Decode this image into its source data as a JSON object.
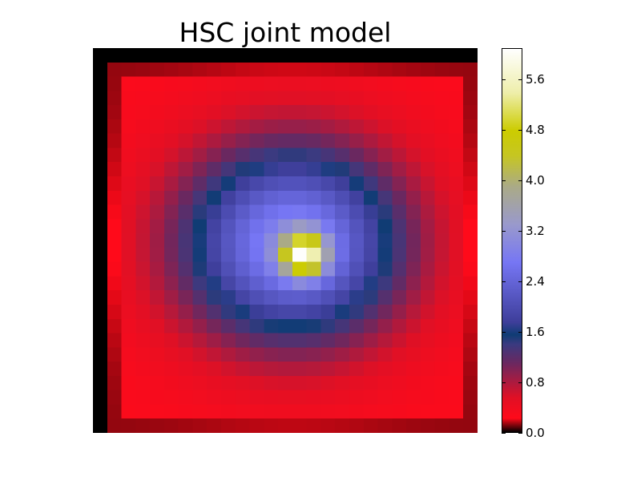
{
  "chart_data": {
    "type": "heatmap",
    "title": "HSC joint model",
    "colormap": "gist_stern",
    "colorbar": {
      "range": [
        0.0,
        6.1
      ],
      "ticks": [
        "0.0",
        "0.8",
        "1.6",
        "2.4",
        "3.2",
        "4.0",
        "4.8",
        "5.6"
      ],
      "gradient": [
        {
          "v": 0.0,
          "color": "#000000"
        },
        {
          "v": 0.22,
          "color": "#ff0a1a"
        },
        {
          "v": 0.55,
          "color": "#e01025"
        },
        {
          "v": 1.1,
          "color": "#6a2860"
        },
        {
          "v": 1.4,
          "color": "#3a3a80"
        },
        {
          "v": 1.55,
          "color": "#0f3c74"
        },
        {
          "v": 1.75,
          "color": "#3e3e9a"
        },
        {
          "v": 2.7,
          "color": "#7676f4"
        },
        {
          "v": 3.3,
          "color": "#9999cc"
        },
        {
          "v": 3.9,
          "color": "#aaaa88"
        },
        {
          "v": 4.4,
          "color": "#c6c622"
        },
        {
          "v": 4.8,
          "color": "#cccc00"
        },
        {
          "v": 5.4,
          "color": "#eeeeaa"
        },
        {
          "v": 6.1,
          "color": "#ffffff"
        }
      ]
    },
    "grid_size": [
      27,
      27
    ],
    "blob": {
      "center": [
        13.5,
        13.2
      ],
      "peak_value": 6.0,
      "core_value": 2.7,
      "edge_value": 0.25
    }
  }
}
